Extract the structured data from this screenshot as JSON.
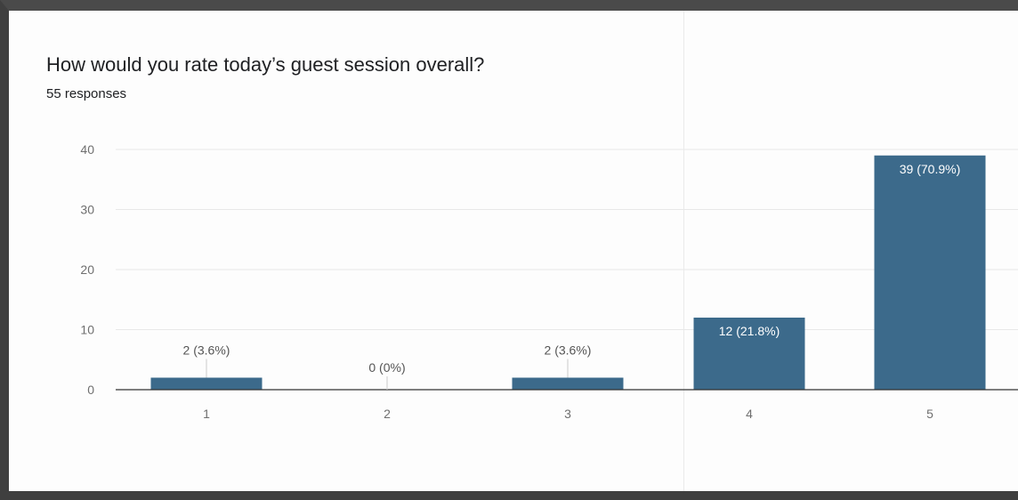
{
  "card": {
    "title": "How would you rate today’s guest session overall?",
    "subtitle": "55 responses"
  },
  "chart_data": {
    "type": "bar",
    "title": "How would you rate today’s guest session overall?",
    "categories": [
      "1",
      "2",
      "3",
      "4",
      "5"
    ],
    "values": [
      2,
      0,
      2,
      12,
      39
    ],
    "data_labels": [
      "2 (3.6%)",
      "0 (0%)",
      "2 (3.6%)",
      "12 (21.8%)",
      "39 (70.9%)"
    ],
    "yticks": [
      0,
      10,
      20,
      30,
      40
    ],
    "ylim": [
      0,
      40
    ],
    "xlabel": "",
    "ylabel": "",
    "grid": true,
    "legend": "none",
    "bar_color": "#3c6a8b",
    "grid_color": "#e8e8e8",
    "axis_color": "#333333"
  }
}
